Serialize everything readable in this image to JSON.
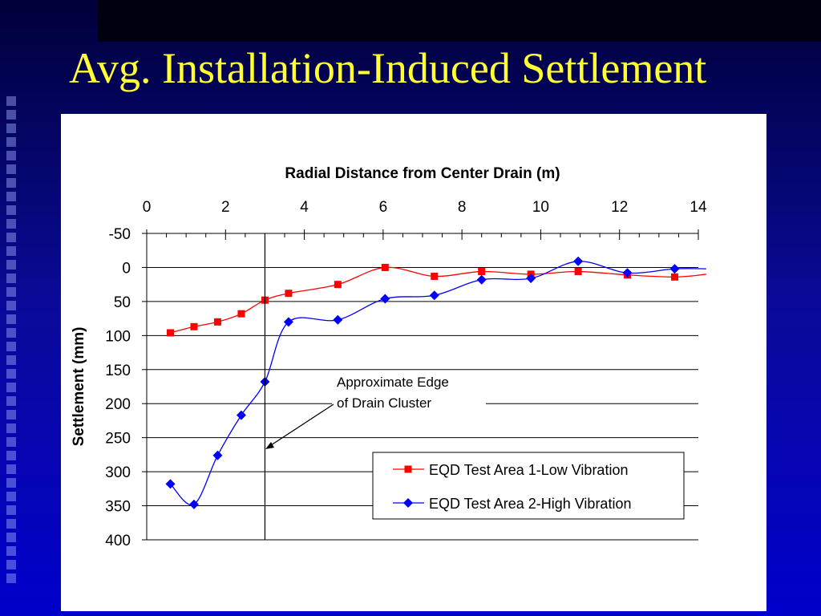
{
  "slide": {
    "title": "Avg. Installation-Induced Settlement"
  },
  "colors": {
    "title": "#ffff33",
    "series_low": "#ff0000",
    "series_high": "#0000ff"
  },
  "chart_data": {
    "type": "line",
    "title": "",
    "xlabel": "Radial Distance from Center Drain (m)",
    "ylabel": "Settlement (mm)",
    "xlim": [
      0,
      14
    ],
    "ylim": [
      -50,
      400
    ],
    "y_inverted": true,
    "x_axis_position": "top",
    "x_ticks": [
      "0",
      "2",
      "4",
      "6",
      "8",
      "10",
      "12",
      "14"
    ],
    "y_ticks": [
      "-50",
      "0",
      "50",
      "100",
      "150",
      "200",
      "250",
      "300",
      "350",
      "400"
    ],
    "grid": "horizontal",
    "legend_position": "bottom-right",
    "series": [
      {
        "name": "EQD Test Area 1-Low Vibration",
        "marker": "square",
        "color": "#ff0000",
        "x": [
          0.6,
          1.2,
          1.8,
          2.4,
          3.0,
          3.6,
          4.85,
          6.05,
          7.3,
          8.5,
          9.75,
          10.95,
          12.2,
          13.4,
          14.2
        ],
        "y": [
          96,
          87,
          80,
          68,
          48,
          38,
          25,
          0,
          13,
          6,
          10,
          6,
          11,
          14,
          10
        ]
      },
      {
        "name": "EQD Test Area 2-High Vibration",
        "marker": "diamond",
        "color": "#0000ff",
        "x": [
          0.6,
          1.2,
          1.8,
          2.4,
          3.0,
          3.6,
          4.85,
          6.05,
          7.3,
          8.5,
          9.75,
          10.95,
          12.2,
          13.4,
          14.2
        ],
        "y": [
          318,
          348,
          276,
          217,
          168,
          80,
          77,
          46,
          41,
          18,
          16,
          -9,
          8,
          2,
          2
        ]
      }
    ],
    "marker_line": {
      "x": 3,
      "annotation": [
        "Approximate Edge",
        "of Drain Cluster"
      ]
    }
  }
}
